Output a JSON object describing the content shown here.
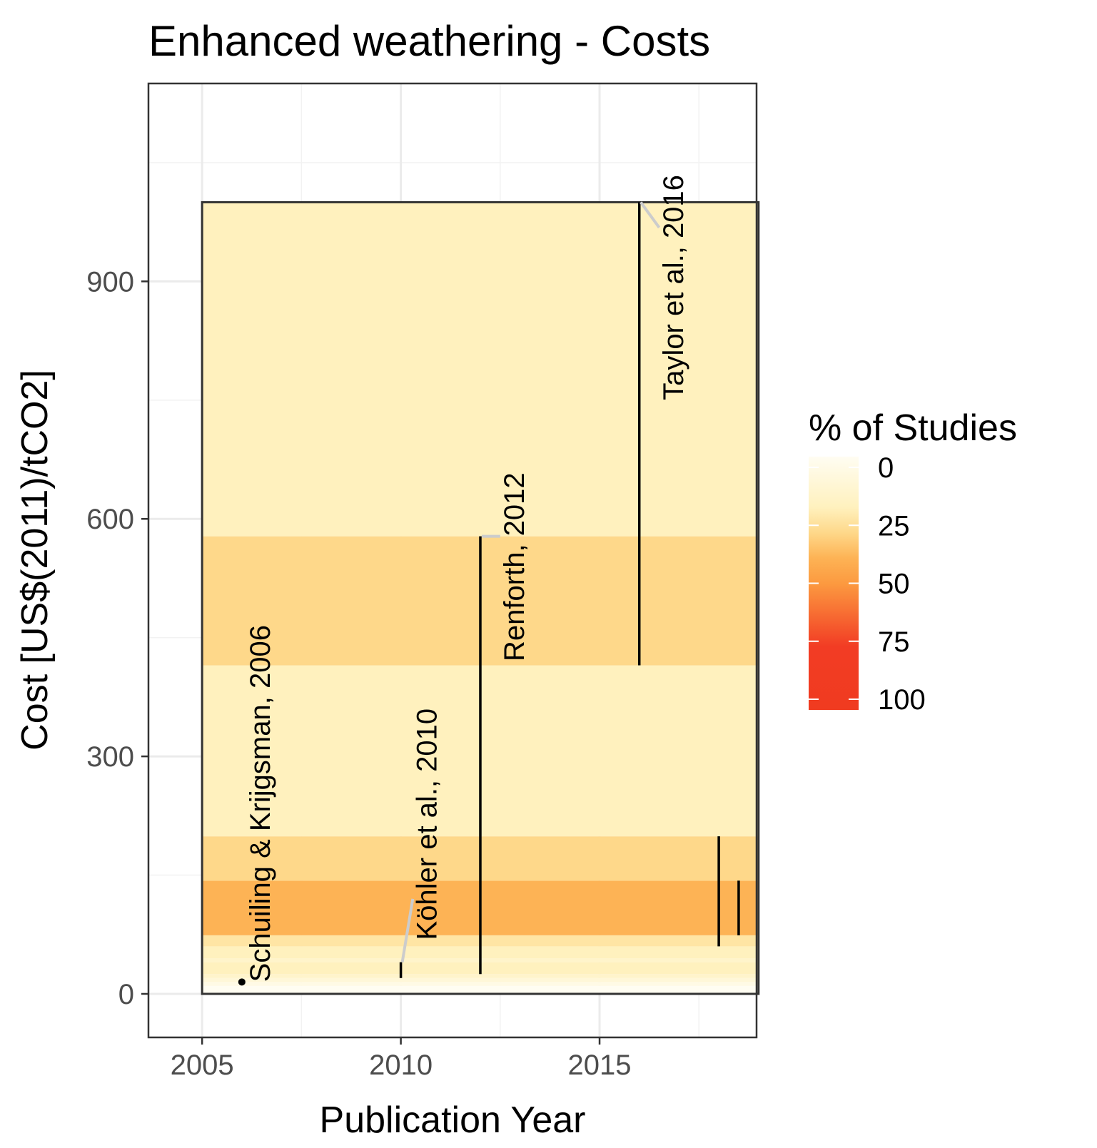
{
  "chart_data": {
    "type": "heatmap",
    "title": "Enhanced weathering - Costs",
    "xlabel": "Publication Year",
    "ylabel": "Cost [US$(2011)/tCO2]",
    "xlim": [
      2003.65,
      2018.95
    ],
    "ylim": [
      -55,
      1150
    ],
    "x_ticks": [
      2005,
      2010,
      2015
    ],
    "y_ticks": [
      0,
      300,
      600,
      900
    ],
    "grid": true,
    "band_x_range": [
      2005,
      2019
    ],
    "bands": [
      {
        "from": 0,
        "to": 10,
        "percent": 0
      },
      {
        "from": 10,
        "to": 15,
        "percent": 5
      },
      {
        "from": 15,
        "to": 20,
        "percent": 10
      },
      {
        "from": 20,
        "to": 25,
        "percent": 15
      },
      {
        "from": 25,
        "to": 40,
        "percent": 20
      },
      {
        "from": 40,
        "to": 45,
        "percent": 15
      },
      {
        "from": 45,
        "to": 60,
        "percent": 20
      },
      {
        "from": 60,
        "to": 74,
        "percent": 25
      },
      {
        "from": 74,
        "to": 143,
        "percent": 40
      },
      {
        "from": 143,
        "to": 199,
        "percent": 30
      },
      {
        "from": 199,
        "to": 415,
        "percent": 20
      },
      {
        "from": 415,
        "to": 578,
        "percent": 30
      },
      {
        "from": 578,
        "to": 1000,
        "percent": 20
      }
    ],
    "ranges": [
      {
        "year": 2006,
        "low": 15,
        "high": 15,
        "point": true
      },
      {
        "year": 2010,
        "low": 20,
        "high": 40
      },
      {
        "year": 2012,
        "low": 25,
        "high": 578
      },
      {
        "year": 2016,
        "low": 415,
        "high": 1000
      },
      {
        "year": 2018,
        "low": 60,
        "high": 199
      },
      {
        "year": 2018.5,
        "low": 74,
        "high": 143
      }
    ],
    "annotations": [
      {
        "text": "Schuiling & Krijgsman, 2006",
        "x": 2006.7,
        "y": 15,
        "from_x": 2006,
        "from_y": 15
      },
      {
        "text": "Köhler et al., 2010",
        "x": 2010.9,
        "y": 68,
        "from_x": 2010,
        "from_y": 40,
        "to_x": 2010.3,
        "to_y": 120
      },
      {
        "text": "Renforth, 2012",
        "x": 2013.1,
        "y": 420,
        "from_x": 2012,
        "from_y": 578,
        "to_x": 2012.5,
        "to_y": 578
      },
      {
        "text": "Taylor et al., 2016",
        "x": 2017.1,
        "y": 750,
        "from_x": 2016,
        "from_y": 1000,
        "to_x": 2016.5,
        "to_y": 968
      }
    ],
    "legend": {
      "title": "% of Studies",
      "position": "right",
      "ticks": [
        0,
        25,
        50,
        75,
        100
      ],
      "colors": [
        {
          "stop": 0,
          "color": "#FFFDF2"
        },
        {
          "stop": 20,
          "color": "#FFF1BE"
        },
        {
          "stop": 30,
          "color": "#FED88A"
        },
        {
          "stop": 40,
          "color": "#FDB355"
        },
        {
          "stop": 50,
          "color": "#FC9A40"
        },
        {
          "stop": 75,
          "color": "#F23C24"
        },
        {
          "stop": 100,
          "color": "#F03B20"
        }
      ]
    }
  }
}
